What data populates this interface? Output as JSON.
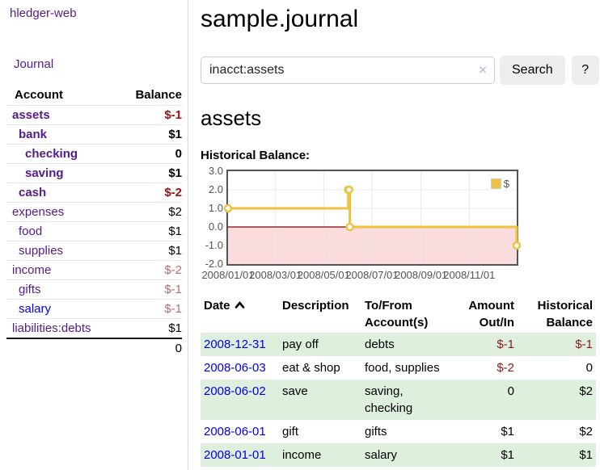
{
  "app": {
    "brand": "hledger-web",
    "nav_journal": "Journal"
  },
  "header": {
    "title": "sample.journal"
  },
  "search": {
    "value": "inacct:assets",
    "clear": "×",
    "search_label": "Search",
    "help_label": "?"
  },
  "sidebar_accounts": {
    "col_account": "Account",
    "col_balance": "Balance",
    "rows": [
      {
        "name": "assets",
        "balance": "$-1"
      },
      {
        "name": "bank",
        "balance": "$1"
      },
      {
        "name": "checking",
        "balance": "0"
      },
      {
        "name": "saving",
        "balance": "$1"
      },
      {
        "name": "cash",
        "balance": "$-2"
      },
      {
        "name": "expenses",
        "balance": "$2"
      },
      {
        "name": "food",
        "balance": "$1"
      },
      {
        "name": "supplies",
        "balance": "$1"
      },
      {
        "name": "income",
        "balance": "$-2"
      },
      {
        "name": "gifts",
        "balance": "$-1"
      },
      {
        "name": "salary",
        "balance": "$-1"
      },
      {
        "name": "liabilities:debts",
        "balance": "$1"
      }
    ],
    "total": "0"
  },
  "account_view": {
    "title": "assets",
    "section_label": "Historical Balance:"
  },
  "chart_data": {
    "type": "line",
    "step": true,
    "title": "Historical Balance",
    "series": [
      {
        "name": "$",
        "points": [
          [
            "2008-01-01",
            1
          ],
          [
            "2008-06-01",
            2
          ],
          [
            "2008-06-02",
            2
          ],
          [
            "2008-06-03",
            0
          ],
          [
            "2008-12-31",
            -1
          ]
        ]
      }
    ],
    "x_range": [
      "2008-01-01",
      "2008-12-31"
    ],
    "ylim": [
      -2,
      3
    ],
    "yticks": [
      3,
      2,
      1,
      0,
      -1,
      -2
    ],
    "ytick_labels": [
      "3.0",
      "2.0",
      "1.0",
      "0.0",
      "-1.0",
      "-2.0"
    ],
    "xtick_dates": [
      "2008-01-01",
      "2008-03-01",
      "2008-05-01",
      "2008-07-01",
      "2008-09-01",
      "2008-11-01"
    ],
    "xtick_labels": [
      "2008/01/01",
      "2008/03/01",
      "2008/05/01",
      "2008/07/01",
      "2008/09/01",
      "2008/11/01"
    ],
    "legend_position": "top-right",
    "grid": true,
    "colors": {
      "series": "#edc240",
      "marker_fill": "#ffffff",
      "negative_region": "#fbdcdc",
      "zero_line": "#8b0000",
      "grid": "#e8e8e8",
      "border": "#545454"
    }
  },
  "register": {
    "headers": {
      "date": "Date",
      "description": "Description",
      "accounts": "To/From Account(s)",
      "amount": "Amount Out/In",
      "balance": "Historical Balance"
    },
    "rows": [
      {
        "date": "2008-12-31",
        "description": "pay off",
        "accounts": "debts",
        "amount": "$-1",
        "balance": "$-1"
      },
      {
        "date": "2008-06-03",
        "description": "eat & shop",
        "accounts": "food, supplies",
        "amount": "$-2",
        "balance": "0"
      },
      {
        "date": "2008-06-02",
        "description": "save",
        "accounts": "saving,\nchecking",
        "amount": "0",
        "balance": "$2"
      },
      {
        "date": "2008-06-01",
        "description": "gift",
        "accounts": "gifts",
        "amount": "$1",
        "balance": "$2"
      },
      {
        "date": "2008-01-01",
        "description": "income",
        "accounts": "salary",
        "amount": "$1",
        "balance": "$1"
      }
    ]
  }
}
